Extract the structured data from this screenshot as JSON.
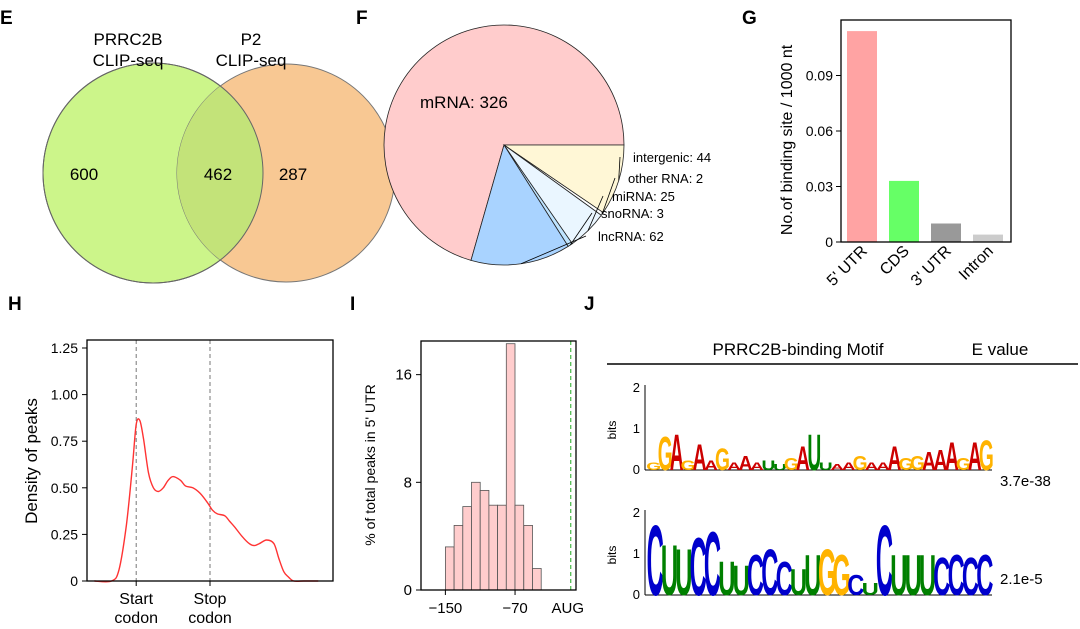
{
  "panels": {
    "E": {
      "letter": "E",
      "set_a": {
        "label_line1": "PRRC2B",
        "label_line2": "CLIP-seq",
        "color": "#ccf58a"
      },
      "set_b": {
        "label_line1": "P2",
        "label_line2": "CLIP-seq",
        "color": "#f8c893"
      },
      "overlap_color": "#c3e379",
      "only_a": "600",
      "both": "462",
      "only_b": "287"
    },
    "F": {
      "letter": "F",
      "chart_type": "pie"
    },
    "G": {
      "letter": "G"
    },
    "H": {
      "letter": "H"
    },
    "I": {
      "letter": "I"
    },
    "J": {
      "letter": "J",
      "header": "PRRC2B-binding Motif",
      "evalue_header": "E value",
      "motif1": {
        "ylabel": "bits",
        "ticks": [
          "2",
          "1",
          "0"
        ],
        "evalue": "3.7e-38",
        "sequence": "GGAGAAGAAAUUGAUUAAGAAAGGAAAGAG"
      },
      "motif2": {
        "ylabel": "bits",
        "ticks": [
          "2",
          "1",
          "0"
        ],
        "evalue": "2.1e-5",
        "sequence": "CUUCCUUCCCUUGGCUCUUUCCCC"
      },
      "base_colors": {
        "A": "#cc0000",
        "C": "#0000cc",
        "G": "#ffb300",
        "U": "#008000"
      }
    }
  },
  "chart_data": [
    {
      "panel": "F",
      "type": "pie",
      "slices": [
        {
          "label": "mRNA",
          "value": 326,
          "display": "mRNA: 326",
          "color": "#ffcccc"
        },
        {
          "label": "intergenic",
          "value": 44,
          "display": "intergenic: 44",
          "color": "#fff7d6"
        },
        {
          "label": "other RNA",
          "value": 2,
          "display": "other RNA: 2",
          "color": "#ffffff"
        },
        {
          "label": "miRNA",
          "value": 25,
          "display": "miRNA: 25",
          "color": "#eaf6ff"
        },
        {
          "label": "snoRNA",
          "value": 3,
          "display": "snoRNA: 3",
          "color": "#bfe4ff"
        },
        {
          "label": "lncRNA",
          "value": 62,
          "display": "lncRNA: 62",
          "color": "#a9d3ff"
        }
      ]
    },
    {
      "panel": "G",
      "type": "bar",
      "categories": [
        "5' UTR",
        "CDS",
        "3' UTR",
        "Intron"
      ],
      "values": [
        0.114,
        0.033,
        0.01,
        0.004
      ],
      "colors": [
        "#ffa3a3",
        "#66ff66",
        "#999999",
        "#cccccc"
      ],
      "ylabel": "No.of binding site / 1000 nt",
      "ylim": [
        0,
        0.12
      ],
      "yticks": [
        0,
        0.03,
        0.06,
        0.09
      ],
      "ytick_labels": [
        "0",
        "0.03",
        "0.06",
        "0.09"
      ]
    },
    {
      "panel": "H",
      "type": "line",
      "ylabel": "Density of peaks",
      "ylim": [
        0,
        1.25
      ],
      "yticks": [
        0,
        0.25,
        0.5,
        0.75,
        1.0,
        1.25
      ],
      "ytick_labels": [
        "0",
        "0.25",
        "0.50",
        "0.75",
        "1.00",
        "1.25"
      ],
      "xlim": [
        0,
        10
      ],
      "markers": [
        {
          "x": 2,
          "label_line1": "Start",
          "label_line2": "codon"
        },
        {
          "x": 5,
          "label_line1": "Stop",
          "label_line2": "codon"
        }
      ],
      "line_color": "#ff3333",
      "x": [
        0.3,
        1.0,
        1.3,
        1.6,
        1.85,
        2.0,
        2.15,
        2.3,
        2.5,
        2.7,
        2.9,
        3.1,
        3.3,
        3.5,
        3.8,
        4.0,
        4.3,
        4.6,
        4.9,
        5.1,
        5.3,
        5.6,
        5.8,
        6.0,
        6.3,
        6.6,
        6.8,
        7.0,
        7.3,
        7.6,
        7.8,
        8.0,
        8.2,
        8.4,
        8.8,
        9.1,
        9.4
      ],
      "y": [
        0.0,
        0.0,
        0.06,
        0.3,
        0.62,
        0.84,
        0.86,
        0.76,
        0.58,
        0.5,
        0.48,
        0.5,
        0.54,
        0.56,
        0.54,
        0.51,
        0.5,
        0.47,
        0.42,
        0.38,
        0.36,
        0.35,
        0.32,
        0.29,
        0.24,
        0.2,
        0.19,
        0.2,
        0.22,
        0.2,
        0.12,
        0.05,
        0.02,
        0.0,
        0.0,
        0.0,
        0.0
      ]
    },
    {
      "panel": "I",
      "type": "bar",
      "ylabel": "% of total peaks in 5' UTR",
      "ylim": [
        0,
        18.5
      ],
      "yticks": [
        0,
        8,
        16
      ],
      "ytick_labels": [
        "0",
        "8",
        "16"
      ],
      "xlim": [
        -178,
        0
      ],
      "xticks": [
        -150,
        -70
      ],
      "xtick_labels": [
        "−150",
        "−70"
      ],
      "aug_label": "AUG",
      "aug_x": -6,
      "bin_width": 10,
      "bin_starts": [
        -160,
        -150,
        -140,
        -130,
        -120,
        -110,
        -100,
        -90,
        -80,
        -70,
        -60,
        -50,
        -40,
        -30,
        -20,
        -10
      ],
      "values": [
        3.2,
        4.8,
        6.2,
        8.0,
        7.4,
        6.3,
        6.3,
        18.3,
        6.3,
        4.8,
        1.6
      ],
      "value_bins_start": -150,
      "bar_color": "#ffcdcd"
    }
  ]
}
